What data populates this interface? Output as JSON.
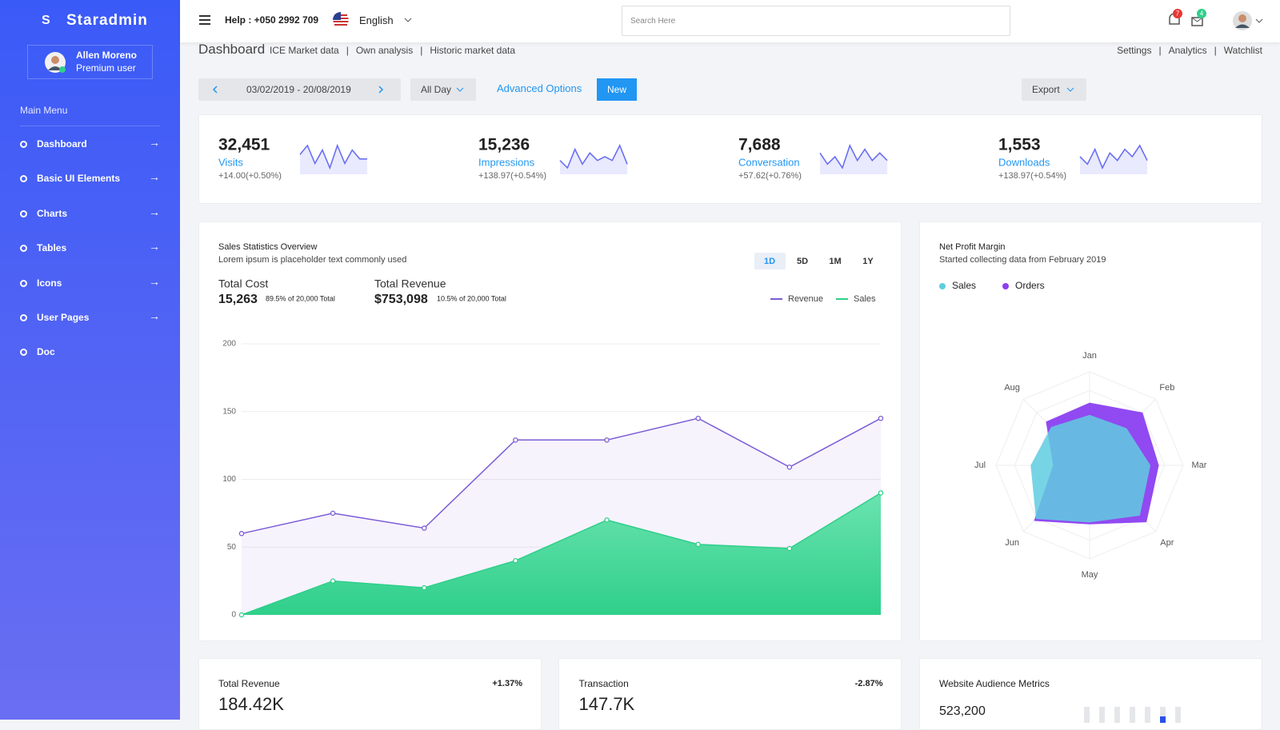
{
  "sidebar": {
    "brand_initial": "S",
    "brand": "Staradmin",
    "user": {
      "name": "Allen Moreno",
      "role": "Premium user"
    },
    "menu_title": "Main Menu",
    "menu": [
      "Dashboard",
      "Basic UI Elements",
      "Charts",
      "Tables",
      "Icons",
      "User Pages",
      "Doc"
    ]
  },
  "topbar": {
    "help": "Help : +050 2992 709",
    "language": "English",
    "search_placeholder": "Search Here",
    "notifications": "7",
    "messages": "4"
  },
  "header": {
    "title": "Dashboard",
    "links": [
      "ICE Market data",
      "Own analysis",
      "Historic market data"
    ],
    "right_links": [
      "Settings",
      "Analytics",
      "Watchlist"
    ]
  },
  "toolbar": {
    "date_range": "03/02/2019 - 20/08/2019",
    "period": "All Day",
    "advanced": "Advanced Options",
    "new": "New",
    "export": "Export"
  },
  "stats": {
    "spark_color": "#6a6ff2",
    "items": [
      {
        "value": "32,451",
        "label": "Visits",
        "change": "+14.00(+0.50%)",
        "spark": [
          5,
          7,
          3,
          6,
          2,
          7,
          3,
          6,
          4,
          4
        ]
      },
      {
        "value": "15,236",
        "label": "Impressions",
        "change": "+138.97(+0.54%)",
        "spark": [
          3,
          1,
          6,
          2,
          5,
          3,
          4,
          3,
          7,
          2
        ]
      },
      {
        "value": "7,688",
        "label": "Conversation",
        "change": "+57.62(+0.76%)",
        "spark": [
          5,
          2,
          4,
          1,
          7,
          3,
          6,
          3,
          5,
          3
        ]
      },
      {
        "value": "1,553",
        "label": "Downloads",
        "change": "+138.97(+0.54%)",
        "spark": [
          4,
          2,
          6,
          1,
          5,
          3,
          6,
          4,
          7,
          3
        ]
      }
    ]
  },
  "sales": {
    "title": "Sales Statistics Overview",
    "subtitle": "Lorem ipsum is placeholder text commonly used",
    "ranges": [
      "1D",
      "5D",
      "1M",
      "1Y"
    ],
    "total_cost_label": "Total Cost",
    "total_cost": "15,263",
    "total_cost_note": "89.5% of 20,000 Total",
    "total_revenue_label": "Total Revenue",
    "total_revenue": "$753,098",
    "total_revenue_note": "10.5% of 20,000 Total",
    "chart": {
      "type": "line",
      "ylim": [
        0,
        200
      ],
      "yticks": [
        0,
        50,
        100,
        150,
        200
      ],
      "grid": true,
      "series": [
        {
          "name": "Revenue",
          "color": "#7c5cd6",
          "values": [
            60,
            75,
            64,
            129,
            129,
            145,
            109,
            145
          ]
        },
        {
          "name": "Sales",
          "color": "#2fcf8a",
          "values": [
            0,
            25,
            20,
            40,
            70,
            52,
            49,
            90
          ]
        }
      ]
    }
  },
  "profit": {
    "title": "Net Profit Margin",
    "subtitle": "Started collecting data from February 2019",
    "chart": {
      "type": "radar",
      "categories": [
        "Jan",
        "Feb",
        "Mar",
        "Apr",
        "May",
        "Jun",
        "Jul",
        "Aug"
      ],
      "rlim": [
        0,
        100
      ],
      "series": [
        {
          "name": "Sales",
          "color": "#5fcde0",
          "values": [
            54,
            56,
            65,
            76,
            61,
            81,
            63,
            58
          ]
        },
        {
          "name": "Orders",
          "color": "#8b3ff0",
          "values": [
            67,
            80,
            74,
            86,
            63,
            84,
            39,
            66
          ]
        }
      ]
    }
  },
  "bottom": [
    {
      "title": "Total Revenue",
      "change": "+1.37%",
      "value": "184.42K"
    },
    {
      "title": "Transaction",
      "change": "-2.87%",
      "value": "147.7K"
    },
    {
      "title": "Website Audience Metrics",
      "value": "523,200"
    }
  ]
}
